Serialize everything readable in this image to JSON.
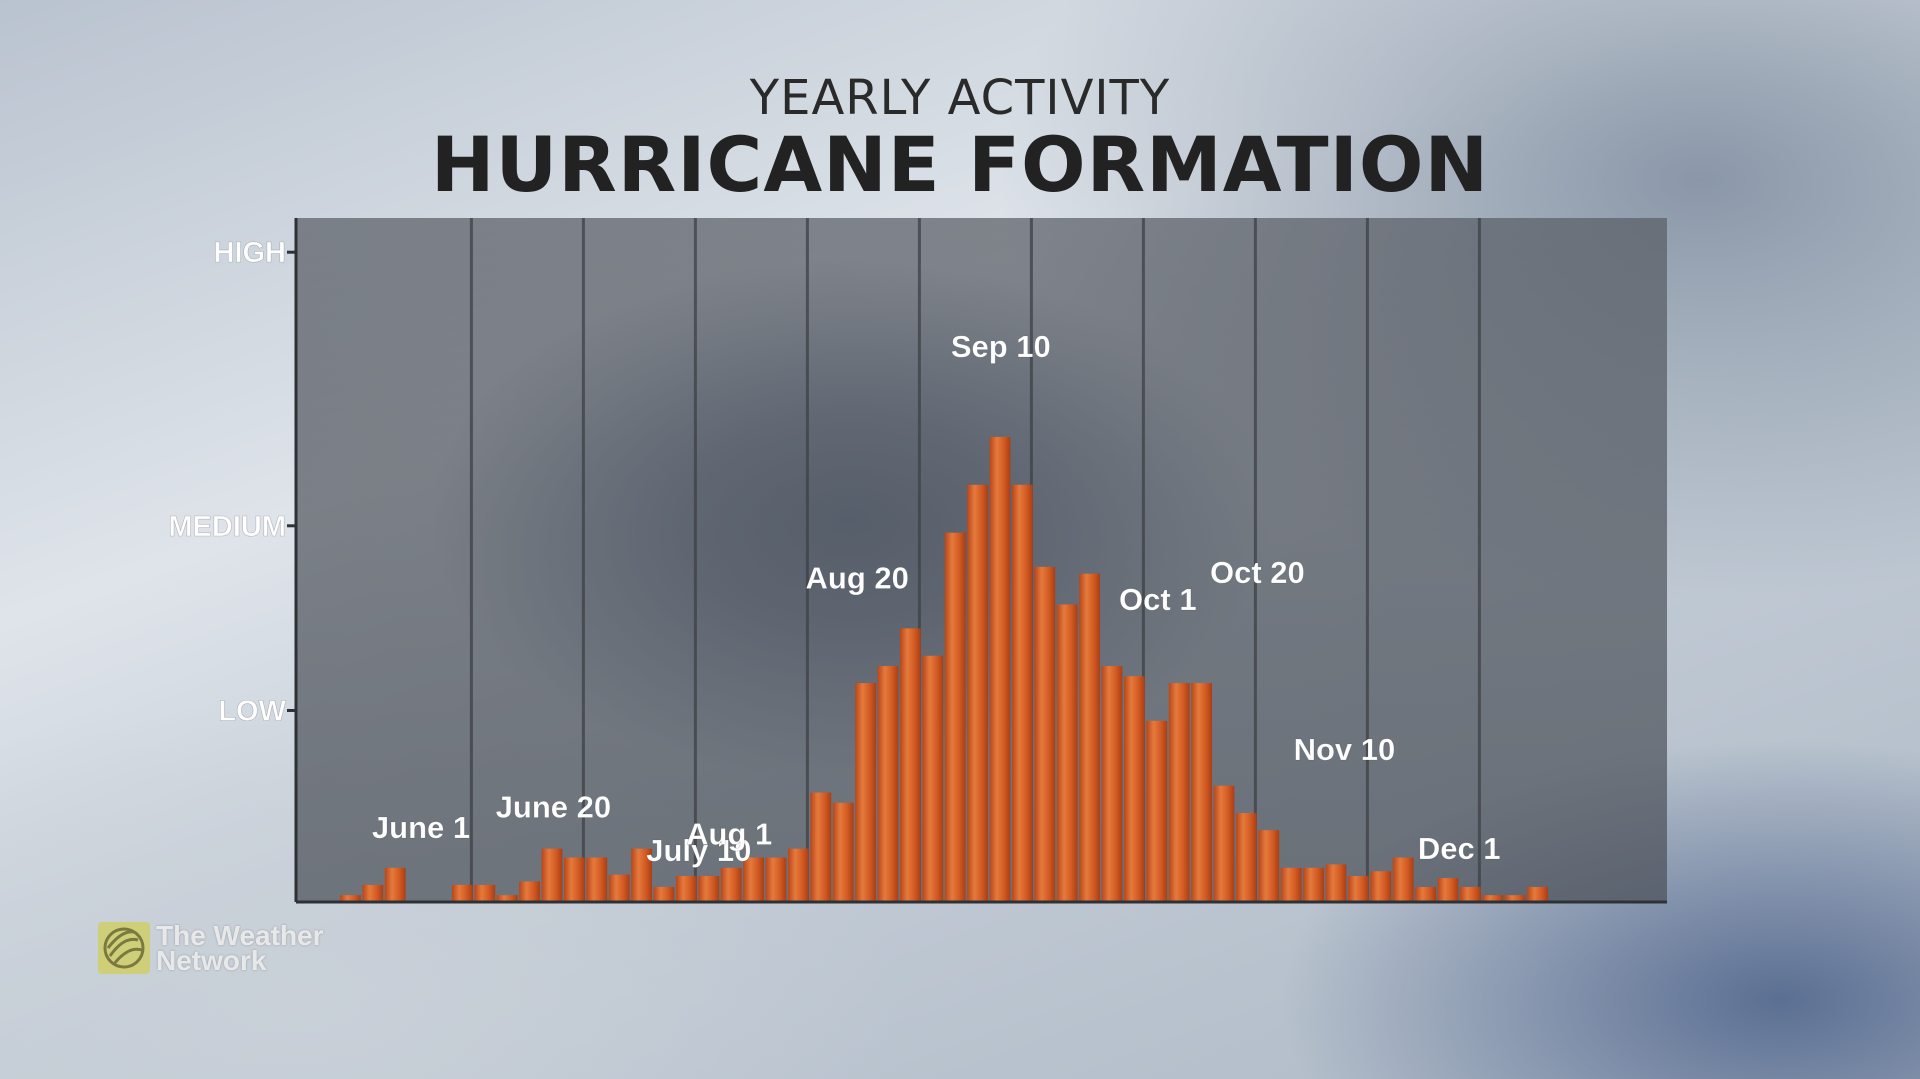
{
  "header": {
    "subtitle": "YEARLY ACTIVITY",
    "title": "HURRICANE FORMATION"
  },
  "chart_data": {
    "type": "bar",
    "title": "HURRICANE FORMATION",
    "subtitle": "YEARLY ACTIVITY",
    "xlabel": "",
    "ylabel": "",
    "y_ticks": [
      "HIGH",
      "MEDIUM",
      "LOW"
    ],
    "y_tick_values": [
      0.95,
      0.55,
      0.28
    ],
    "ylim": [
      0,
      1
    ],
    "grid": "vertical",
    "bar_color": "#d0561f",
    "values": [
      0.01,
      0.025,
      0.05,
      0,
      0,
      0.025,
      0.025,
      0.01,
      0.03,
      0.078,
      0.065,
      0.065,
      0.04,
      0.078,
      0.022,
      0.038,
      0.038,
      0.05,
      0.065,
      0.065,
      0.078,
      0.16,
      0.145,
      0.32,
      0.345,
      0.4,
      0.36,
      0.54,
      0.61,
      0.68,
      0.61,
      0.49,
      0.435,
      0.48,
      0.345,
      0.33,
      0.265,
      0.32,
      0.32,
      0.17,
      0.13,
      0.105,
      0.05,
      0.05,
      0.055,
      0.038,
      0.045,
      0.065,
      0.022,
      0.035,
      0.022,
      0.01,
      0.01,
      0.022
    ],
    "annotations": [
      {
        "label": "June 1",
        "bar": 2
      },
      {
        "label": "June 20",
        "bar": 8
      },
      {
        "label": "July 10",
        "bar": 14
      },
      {
        "label": "Aug 1",
        "bar": 20
      },
      {
        "label": "Aug 20",
        "bar": 25
      },
      {
        "label": "Sep 10",
        "bar": 29
      },
      {
        "label": "Oct 1",
        "bar": 34
      },
      {
        "label": "Oct 20",
        "bar": 38
      },
      {
        "label": "Nov 10",
        "bar": 43
      },
      {
        "label": "Dec 1",
        "bar": 50
      }
    ]
  },
  "logo": {
    "line1": "The Weather",
    "line2": "Network"
  }
}
